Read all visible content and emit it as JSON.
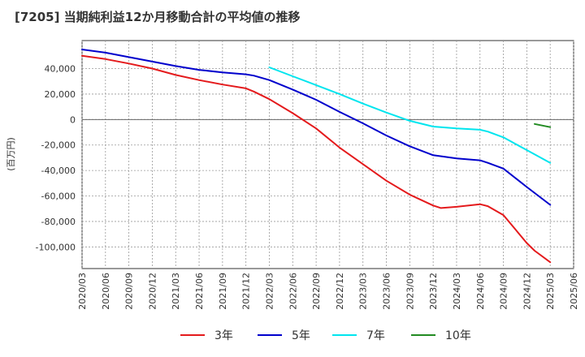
{
  "title": "[7205]  当期純利益12か月移動合計の平均値の推移",
  "chart_data": {
    "type": "line",
    "title": "[7205]  当期純利益12か月移動合計の平均値の推移",
    "ylabel": "(百万円)",
    "xlabel": "",
    "ylim": [
      -117000,
      62000
    ],
    "xlim": [
      "2020/03",
      "2025/06"
    ],
    "y_ticks": [
      40000,
      20000,
      0,
      -20000,
      -40000,
      -60000,
      -80000,
      -100000
    ],
    "y_tick_labels": [
      "40,000",
      "20,000",
      "0",
      "-20,000",
      "-40,000",
      "-60,000",
      "-80,000",
      "-100,000"
    ],
    "x_tick_labels": [
      "2020/03",
      "2020/06",
      "2020/09",
      "2020/12",
      "2021/03",
      "2021/06",
      "2021/09",
      "2021/12",
      "2022/03",
      "2022/06",
      "2022/09",
      "2022/12",
      "2023/03",
      "2023/06",
      "2023/09",
      "2023/12",
      "2024/03",
      "2024/06",
      "2024/09",
      "2024/12",
      "2025/03",
      "2025/06"
    ],
    "grid": true,
    "legend_position": "bottom",
    "series": [
      {
        "name": "3年",
        "color": "#e41a1c",
        "x": [
          "2020/03",
          "2020/06",
          "2020/09",
          "2020/12",
          "2021/03",
          "2021/06",
          "2021/09",
          "2021/12",
          "2022/01",
          "2022/03",
          "2022/06",
          "2022/09",
          "2022/12",
          "2023/03",
          "2023/06",
          "2023/09",
          "2023/12",
          "2024/01",
          "2024/03",
          "2024/06",
          "2024/07",
          "2024/09",
          "2024/12",
          "2025/01",
          "2025/03"
        ],
        "values": [
          50000,
          47500,
          44000,
          40000,
          35000,
          31000,
          27500,
          24500,
          22000,
          16000,
          5000,
          -7000,
          -22000,
          -35000,
          -48000,
          -59000,
          -67500,
          -69500,
          -68500,
          -66500,
          -68000,
          -75000,
          -97000,
          -103000,
          -112000
        ]
      },
      {
        "name": "5年",
        "color": "#0000cc",
        "x": [
          "2020/03",
          "2020/06",
          "2020/09",
          "2020/12",
          "2021/03",
          "2021/06",
          "2021/09",
          "2021/12",
          "2022/01",
          "2022/03",
          "2022/06",
          "2022/09",
          "2022/12",
          "2023/03",
          "2023/06",
          "2023/09",
          "2023/12",
          "2024/03",
          "2024/06",
          "2024/07",
          "2024/09",
          "2024/12",
          "2025/03"
        ],
        "values": [
          55000,
          52500,
          49000,
          45500,
          42000,
          39000,
          37000,
          35500,
          34500,
          31000,
          23500,
          15500,
          6000,
          -3000,
          -12500,
          -21000,
          -28000,
          -30500,
          -32000,
          -34000,
          -38500,
          -53000,
          -67000
        ]
      },
      {
        "name": "7年",
        "color": "#00e5ee",
        "x": [
          "2022/03",
          "2022/06",
          "2022/09",
          "2022/12",
          "2023/03",
          "2023/06",
          "2023/09",
          "2023/12",
          "2024/03",
          "2024/06",
          "2024/07",
          "2024/09",
          "2024/12",
          "2025/03"
        ],
        "values": [
          41000,
          34000,
          27000,
          20000,
          12500,
          5500,
          -1000,
          -5500,
          -7000,
          -8000,
          -9500,
          -14000,
          -24000,
          -34000
        ]
      },
      {
        "name": "10年",
        "color": "#228b22",
        "x": [
          "2025/01",
          "2025/03"
        ],
        "values": [
          -3500,
          -6000
        ]
      }
    ]
  }
}
